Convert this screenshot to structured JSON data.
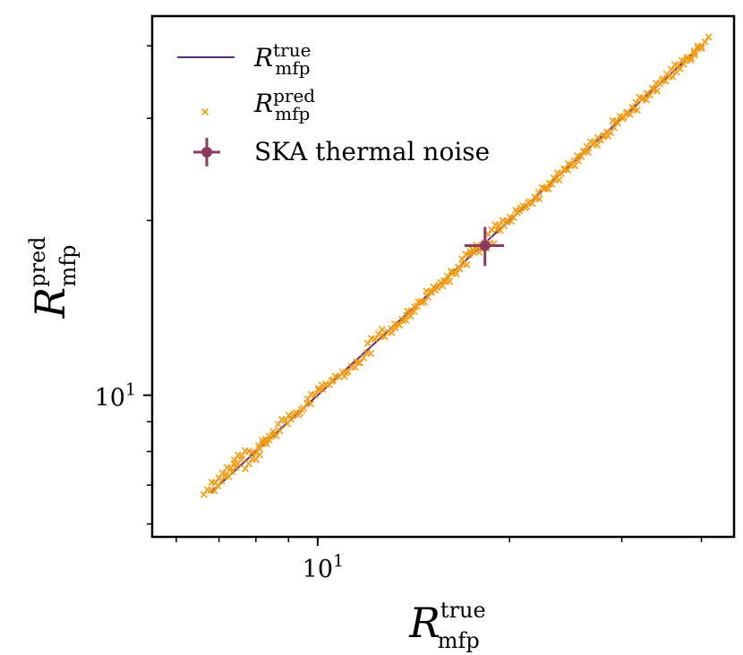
{
  "chart_data": {
    "type": "scatter",
    "xscale": "log",
    "yscale": "log",
    "xlim": [
      5.5,
      45
    ],
    "ylim": [
      5.7,
      45
    ],
    "x_ticks": [
      {
        "value": 10,
        "base": "10",
        "exp": "1"
      }
    ],
    "y_ticks": [
      {
        "value": 10,
        "base": "10",
        "exp": "1"
      }
    ],
    "xlabel": {
      "main": "R",
      "sup": "true",
      "sub": "mfp"
    },
    "ylabel": {
      "main": "R",
      "sup": "pred",
      "sub": "mfp"
    },
    "legend_position": "top-left",
    "colors": {
      "true_line": "#5b2a86",
      "pred_marker": "#f39c12",
      "ska_marker": "#8b3a62"
    },
    "series": [
      {
        "name": "true",
        "label_main": "R",
        "label_sup": "true",
        "label_sub": "mfp",
        "type": "line",
        "x": [
          6.8,
          40.3
        ],
        "y": [
          6.8,
          40.3
        ]
      },
      {
        "name": "pred",
        "label_main": "R",
        "label_sup": "pred",
        "label_sub": "mfp",
        "type": "scatter",
        "marker": "x",
        "x": [
          6.8,
          7.0,
          7.25,
          7.4,
          7.6,
          7.9,
          8.1,
          8.3,
          8.5,
          8.9,
          9.2,
          9.5,
          9.9,
          10.3,
          10.8,
          11.3,
          11.8,
          12.3,
          12.9,
          13.4,
          13.8,
          14.2,
          14.7,
          15.2,
          15.7,
          16.2,
          16.7,
          17.3,
          17.8,
          18.4,
          19.0,
          19.6,
          20.3,
          21.0,
          21.7,
          22.5,
          23.3,
          24.1,
          25.0,
          25.9,
          26.8,
          27.8,
          28.8,
          29.8,
          30.9,
          32.0,
          33.2,
          34.4,
          35.6,
          36.8,
          38.0,
          39.0,
          40.0
        ],
        "y": [
          6.8,
          7.2,
          7.3,
          7.6,
          7.9,
          7.7,
          8.1,
          8.4,
          8.5,
          9.1,
          9.2,
          9.5,
          10.1,
          10.4,
          10.8,
          11.1,
          11.6,
          12.6,
          12.8,
          13.3,
          13.6,
          14.2,
          14.6,
          15.3,
          15.5,
          16.2,
          16.5,
          17.6,
          17.9,
          18.0,
          19.5,
          19.6,
          20.4,
          21.1,
          21.5,
          22.6,
          23.1,
          24.3,
          24.8,
          25.9,
          27.1,
          27.5,
          28.6,
          30.1,
          30.6,
          32.3,
          32.9,
          34.7,
          35.3,
          37.2,
          37.6,
          38.9,
          40.2
        ]
      },
      {
        "name": "ska",
        "label": "SKA thermal noise",
        "type": "errorbar",
        "x": [
          18.3
        ],
        "y": [
          18.1
        ],
        "xerr": [
          1.3
        ],
        "yerr": [
          1.4
        ]
      }
    ]
  }
}
